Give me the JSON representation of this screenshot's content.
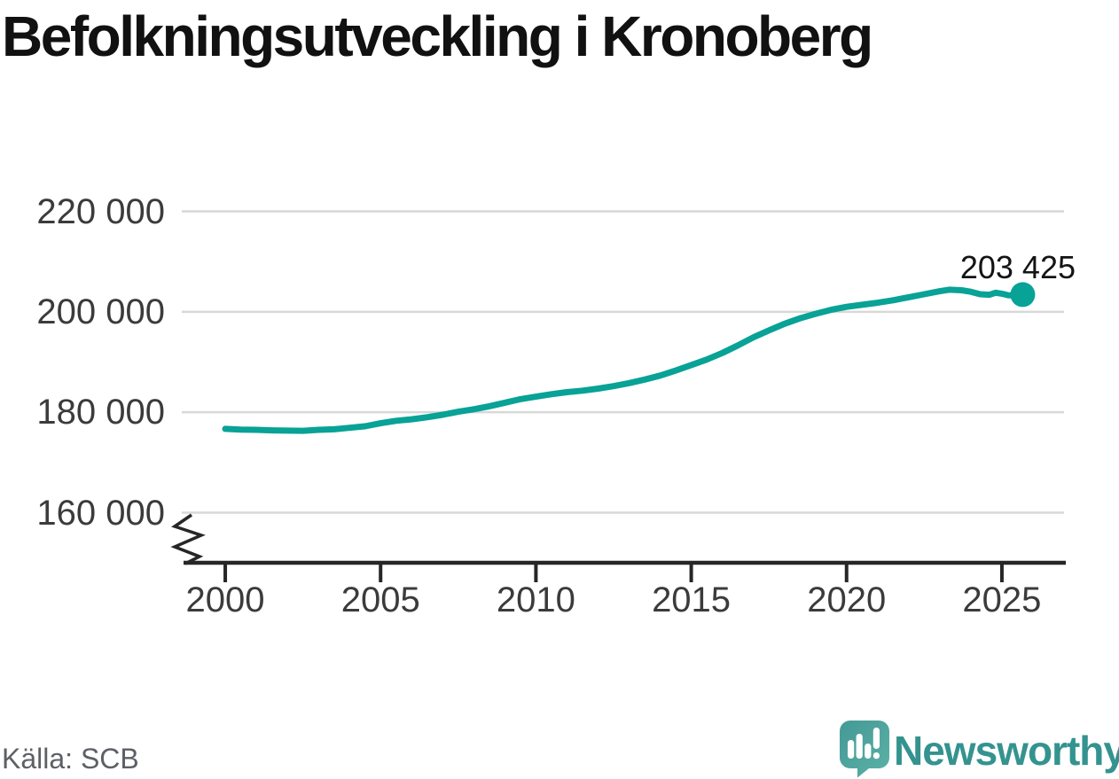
{
  "header": {
    "title": "Befolkningsutveckling i Kronoberg"
  },
  "footer": {
    "source_label": "Källa: SCB",
    "brand_name": "Newsworthy"
  },
  "colors": {
    "line": "#08a296",
    "grid": "#d8d8d8",
    "axis": "#262626",
    "tick_label": "#3b3b3b",
    "title": "#111111",
    "annotation": "#141414",
    "source_text": "#5d6066",
    "brand_teal": "#34938f",
    "logo_teal_dark": "#449996",
    "logo_teal_light": "#5cb1a6"
  },
  "chart_data": {
    "type": "line",
    "title": "Befolkningsutveckling i Kronoberg",
    "xlabel": "",
    "ylabel": "",
    "grid": "horizontal-only",
    "y_axis_break": true,
    "legend": "none",
    "x_range": [
      1998.6,
      2027.0
    ],
    "y_range": [
      160000,
      220000
    ],
    "x_ticks": [
      {
        "value": 2000,
        "label": "2000"
      },
      {
        "value": 2005,
        "label": "2005"
      },
      {
        "value": 2010,
        "label": "2010"
      },
      {
        "value": 2015,
        "label": "2015"
      },
      {
        "value": 2020,
        "label": "2020"
      },
      {
        "value": 2025,
        "label": "2025"
      }
    ],
    "y_ticks": [
      {
        "value": 160000,
        "label": "160 000"
      },
      {
        "value": 180000,
        "label": "180 000"
      },
      {
        "value": 200000,
        "label": "200 000"
      },
      {
        "value": 220000,
        "label": "220 000"
      }
    ],
    "series": [
      {
        "color": "#08a296",
        "points": [
          [
            2000.0,
            176700
          ],
          [
            2000.5,
            176550
          ],
          [
            2001.0,
            176500
          ],
          [
            2001.5,
            176400
          ],
          [
            2002.0,
            176350
          ],
          [
            2002.5,
            176300
          ],
          [
            2003.0,
            176500
          ],
          [
            2003.5,
            176600
          ],
          [
            2004.0,
            176900
          ],
          [
            2004.5,
            177200
          ],
          [
            2005.0,
            177800
          ],
          [
            2005.5,
            178300
          ],
          [
            2006.0,
            178600
          ],
          [
            2006.5,
            179000
          ],
          [
            2007.0,
            179500
          ],
          [
            2007.5,
            180100
          ],
          [
            2008.0,
            180600
          ],
          [
            2008.5,
            181200
          ],
          [
            2009.0,
            181900
          ],
          [
            2009.5,
            182600
          ],
          [
            2010.0,
            183100
          ],
          [
            2010.5,
            183600
          ],
          [
            2011.0,
            184000
          ],
          [
            2011.5,
            184300
          ],
          [
            2012.0,
            184700
          ],
          [
            2012.5,
            185200
          ],
          [
            2013.0,
            185800
          ],
          [
            2013.5,
            186500
          ],
          [
            2014.0,
            187300
          ],
          [
            2014.5,
            188300
          ],
          [
            2015.0,
            189400
          ],
          [
            2015.5,
            190500
          ],
          [
            2016.0,
            191800
          ],
          [
            2016.5,
            193300
          ],
          [
            2017.0,
            194900
          ],
          [
            2017.5,
            196300
          ],
          [
            2018.0,
            197600
          ],
          [
            2018.5,
            198700
          ],
          [
            2019.0,
            199600
          ],
          [
            2019.5,
            200400
          ],
          [
            2020.0,
            201000
          ],
          [
            2020.5,
            201400
          ],
          [
            2021.0,
            201800
          ],
          [
            2021.5,
            202300
          ],
          [
            2022.0,
            202900
          ],
          [
            2022.5,
            203500
          ],
          [
            2023.0,
            204100
          ],
          [
            2023.3,
            204400
          ],
          [
            2023.7,
            204300
          ],
          [
            2024.0,
            204000
          ],
          [
            2024.3,
            203500
          ],
          [
            2024.6,
            203400
          ],
          [
            2024.8,
            203800
          ],
          [
            2025.0,
            203600
          ],
          [
            2025.2,
            203300
          ],
          [
            2025.4,
            203250
          ],
          [
            2025.67,
            203425
          ]
        ]
      }
    ],
    "last_point": {
      "x": 2025.67,
      "value": 203425,
      "label": "203 425"
    }
  }
}
